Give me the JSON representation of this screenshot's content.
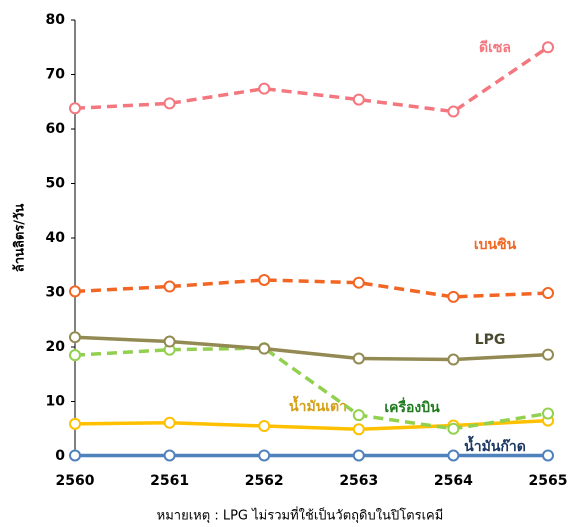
{
  "chart_data": {
    "type": "line",
    "y_label": "ล้านลิตร/วัน",
    "note": "หมายเหตุ :  LPG ไม่รวมที่ใช้เป็นวัตถุดิบในปิโตรเคมี",
    "x": [
      2560,
      2561,
      2562,
      2563,
      2564,
      2565
    ],
    "xlim": [
      2560,
      2565
    ],
    "xticks": [
      2560,
      2561,
      2562,
      2563,
      2564,
      2565
    ],
    "ylim": [
      0,
      80
    ],
    "yticks": [
      0,
      10,
      20,
      30,
      40,
      50,
      60,
      70,
      80
    ],
    "series": [
      {
        "name": "ดีเซล",
        "color": "#f4777f",
        "label_color": "#f4777f",
        "dashed": true,
        "values": [
          63.8,
          64.7,
          67.4,
          65.4,
          63.2,
          75.0
        ]
      },
      {
        "name": "เบนซิน",
        "color": "#f26522",
        "label_color": "#f26522",
        "dashed": true,
        "values": [
          30.2,
          31.1,
          32.3,
          31.8,
          29.2,
          29.9
        ]
      },
      {
        "name": "LPG",
        "color": "#938953",
        "label_color": "#4a4a30",
        "dashed": false,
        "values": [
          21.8,
          21.0,
          19.7,
          17.9,
          17.7,
          18.6
        ]
      },
      {
        "name": "เครื่องบิน",
        "color": "#92d050",
        "label_color": "#1e7b1e",
        "dashed": true,
        "values": [
          18.5,
          19.5,
          19.8,
          7.5,
          5.0,
          7.8
        ]
      },
      {
        "name": "น้ำมันเตา",
        "color": "#ffc000",
        "label_color": "#d4a017",
        "dashed": false,
        "values": [
          5.9,
          6.1,
          5.5,
          4.9,
          5.6,
          6.5
        ]
      },
      {
        "name": "น้ำมันก๊าด",
        "color": "#4f81bd",
        "label_color": "#1f3864",
        "dashed": false,
        "values": [
          0.1,
          0.1,
          0.1,
          0.1,
          0.1,
          0.1
        ]
      }
    ]
  }
}
